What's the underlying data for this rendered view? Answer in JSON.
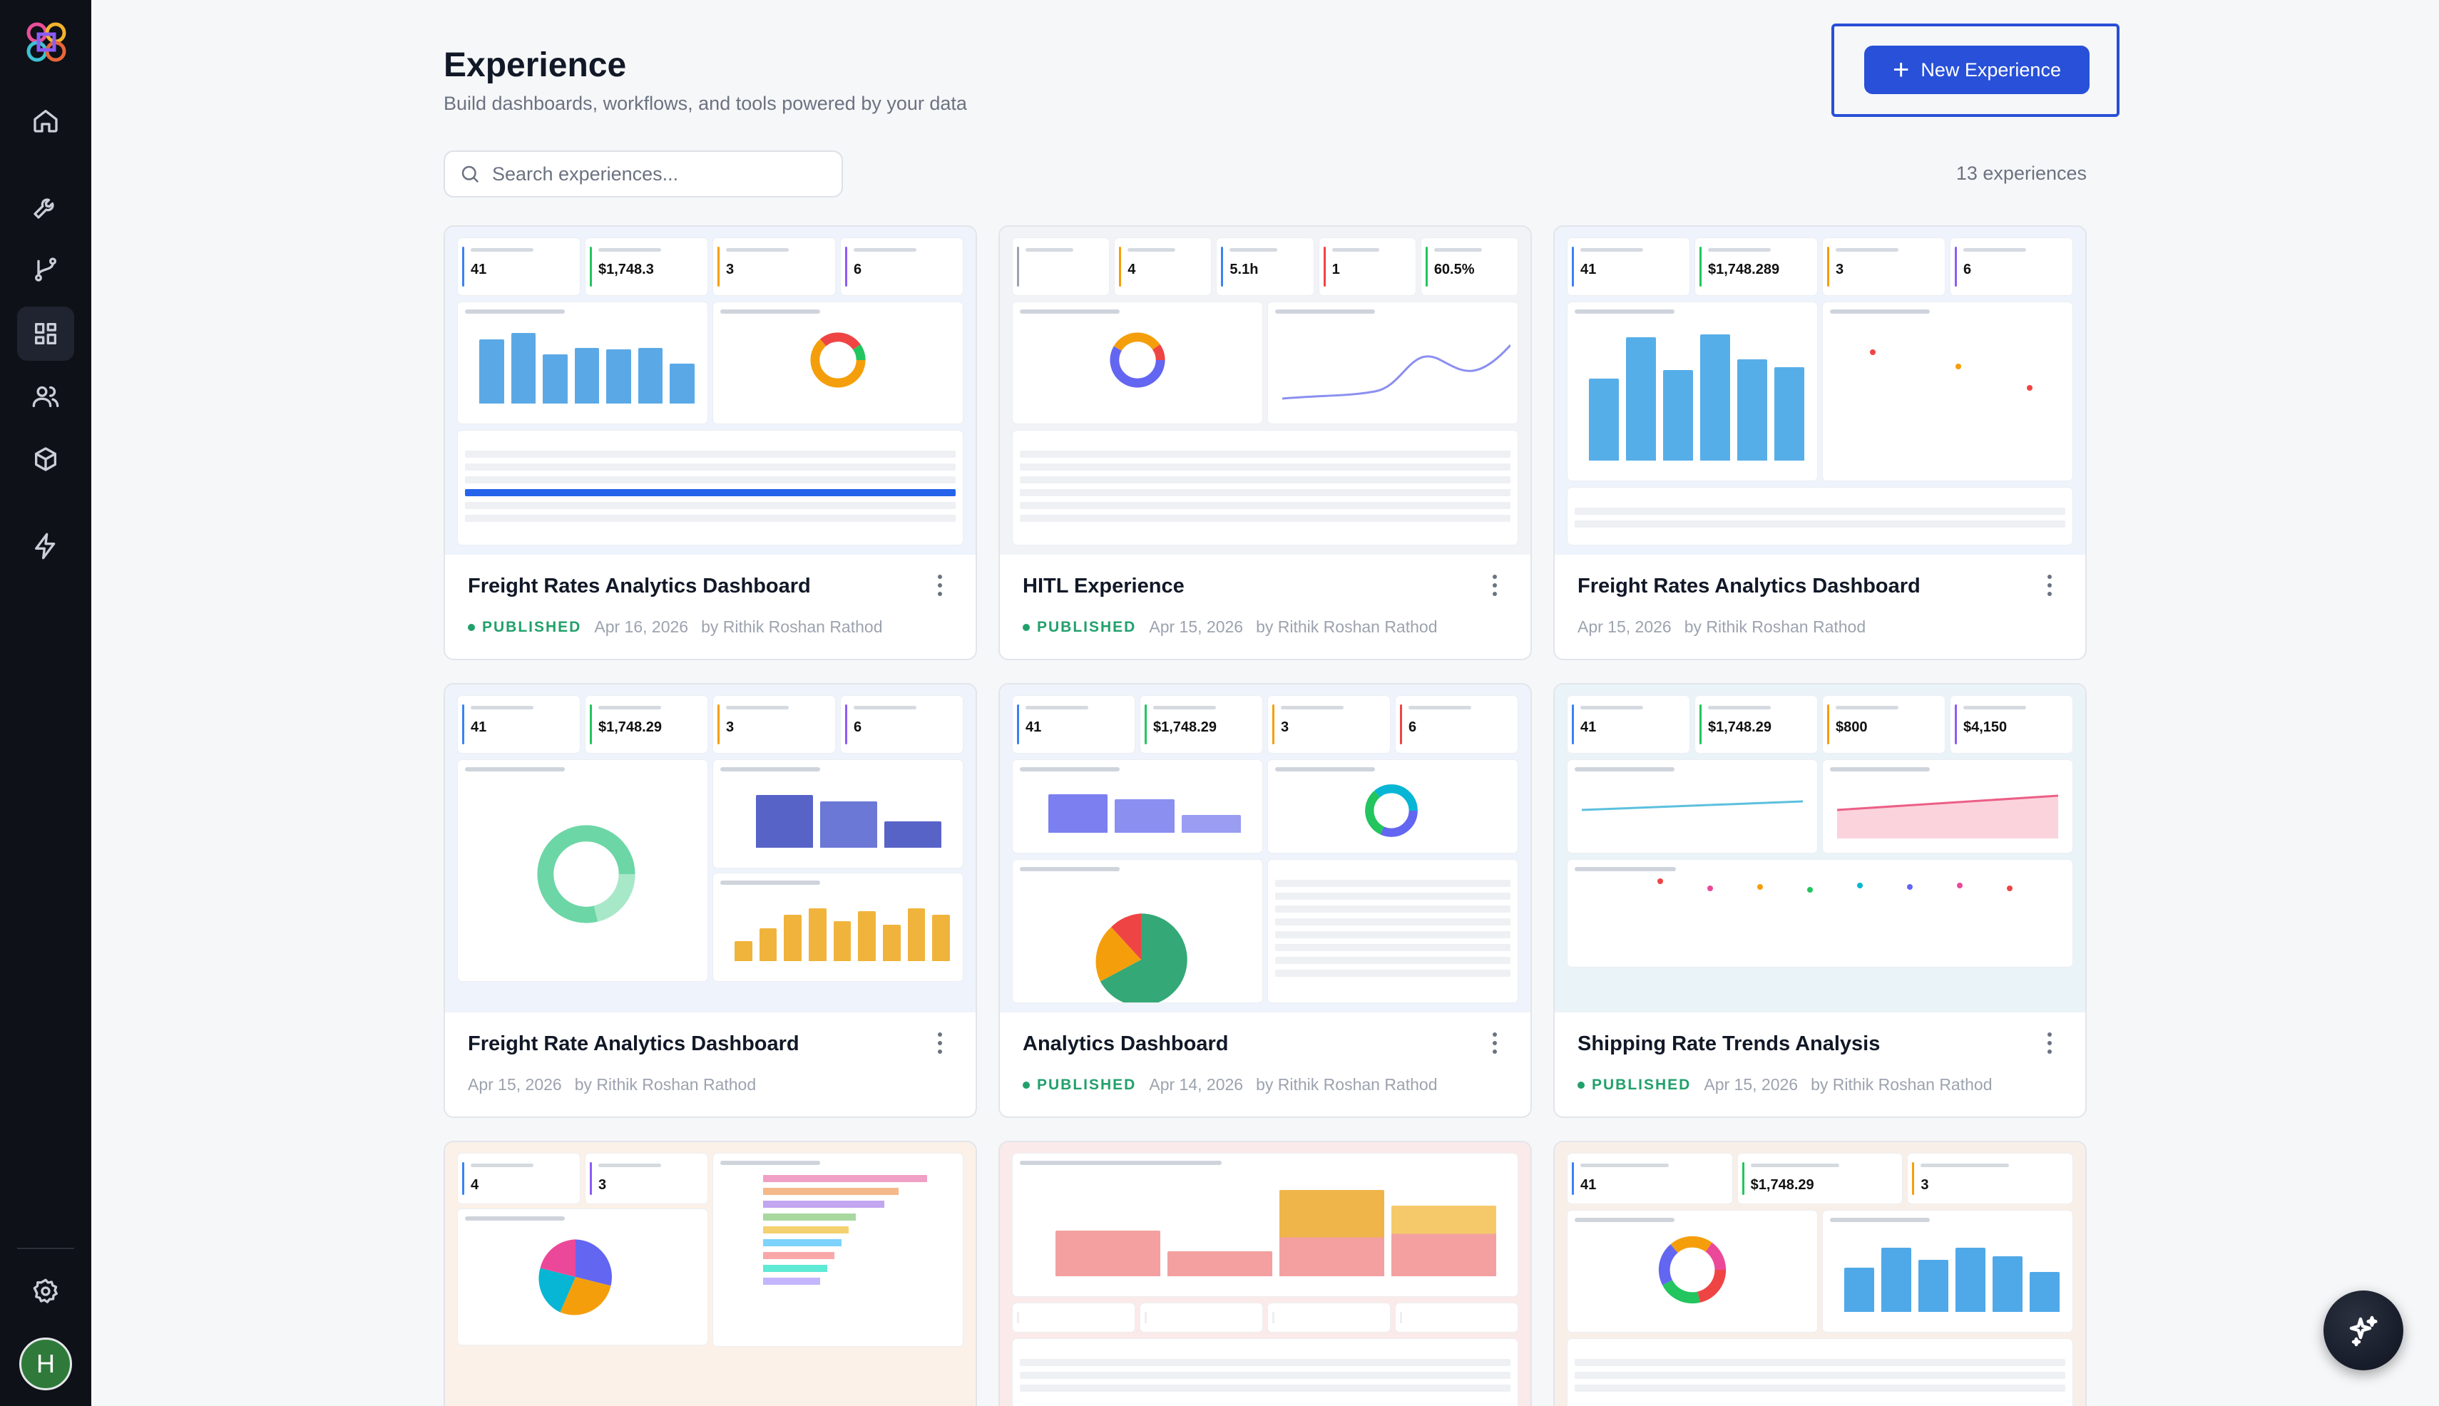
{
  "header": {
    "title": "Experience",
    "subtitle": "Build dashboards, workflows, and tools powered by your data",
    "new_button": "New Experience"
  },
  "search": {
    "placeholder": "Search experiences..."
  },
  "count_label": "13 experiences",
  "sidebar": {
    "avatar_initial": "H",
    "items": [
      {
        "icon": "home-icon"
      },
      {
        "icon": "wrench-icon"
      },
      {
        "icon": "git-branch-icon"
      },
      {
        "icon": "grid-icon",
        "active": true
      },
      {
        "icon": "users-icon"
      },
      {
        "icon": "cube-icon"
      },
      {
        "icon": "lightning-icon"
      },
      {
        "icon": "gear-icon"
      }
    ]
  },
  "cards": [
    {
      "title": "Freight Rates Analytics Dashboard",
      "status": "PUBLISHED",
      "date": "Apr 16, 2026",
      "author": "by Rithik Roshan Rathod",
      "kpis": [
        "41",
        "$1,748.3",
        "3",
        "6"
      ]
    },
    {
      "title": "HITL Experience",
      "status": "PUBLISHED",
      "date": "Apr 15, 2026",
      "author": "by Rithik Roshan Rathod",
      "kpis": [
        "",
        "4",
        "5.1h",
        "1",
        "60.5%"
      ]
    },
    {
      "title": "Freight Rates Analytics Dashboard",
      "status": "",
      "date": "Apr 15, 2026",
      "author": "by Rithik Roshan Rathod",
      "kpis": [
        "41",
        "$1,748.289",
        "3",
        "6"
      ]
    },
    {
      "title": "Freight Rate Analytics Dashboard",
      "status": "",
      "date": "Apr 15, 2026",
      "author": "by Rithik Roshan Rathod",
      "kpis": [
        "41",
        "$1,748.29",
        "3",
        "6"
      ]
    },
    {
      "title": "Analytics Dashboard",
      "status": "PUBLISHED",
      "date": "Apr 14, 2026",
      "author": "by Rithik Roshan Rathod",
      "kpis": [
        "41",
        "$1,748.29",
        "3",
        "6"
      ]
    },
    {
      "title": "Shipping Rate Trends Analysis",
      "status": "PUBLISHED",
      "date": "Apr 15, 2026",
      "author": "by Rithik Roshan Rathod",
      "kpis": [
        "41",
        "$1,748.29",
        "$800",
        "$4,150"
      ]
    },
    {
      "kpis": [
        "4",
        "3"
      ]
    },
    {
      "kpis": []
    },
    {
      "kpis": [
        "41",
        "$1,748.29",
        "3"
      ]
    }
  ]
}
